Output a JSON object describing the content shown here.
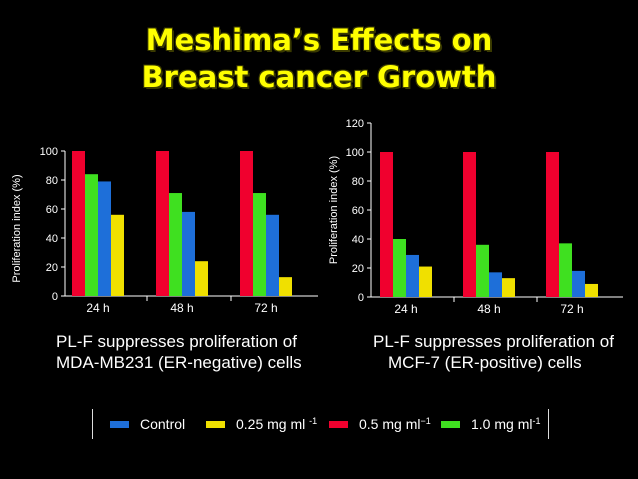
{
  "title": {
    "line1": "Meshima’s Effects on",
    "line2": "Breast cancer Growth"
  },
  "legend": [
    {
      "key": "control",
      "text": "Control",
      "sup": "",
      "color": "#1e6fd9"
    },
    {
      "key": "dose025",
      "text": "0.25 mg ml ",
      "sup": "-1",
      "color": "#f0e000"
    },
    {
      "key": "dose05",
      "text": "0.5 mg ml",
      "sup": "−1",
      "color": "#f0002e"
    },
    {
      "key": "dose10",
      "text": "1.0 mg ml",
      "sup": "-1",
      "color": "#3fe020"
    }
  ],
  "chart_data": [
    {
      "type": "bar",
      "ylabel": "Proliferation index (%)",
      "xlabel": "",
      "ylim": [
        0,
        100
      ],
      "yticks": [
        0,
        20,
        40,
        60,
        80,
        100
      ],
      "categories": [
        "24 h",
        "48 h",
        "72 h"
      ],
      "series": [
        {
          "name": "0.5 mg ml−1",
          "color": "#f0002e",
          "values": [
            100,
            100,
            100
          ]
        },
        {
          "name": "1.0 mg ml-1",
          "color": "#3fe020",
          "values": [
            84,
            71,
            71
          ]
        },
        {
          "name": "Control",
          "color": "#1e6fd9",
          "values": [
            79,
            58,
            56
          ]
        },
        {
          "name": "0.25 mg ml -1",
          "color": "#f0e000",
          "values": [
            56,
            24,
            13
          ]
        }
      ],
      "caption": [
        "PL-F suppresses proliferation of",
        "MDA-MB231 (ER-negative) cells"
      ]
    },
    {
      "type": "bar",
      "ylabel": "Proliferation index (%)",
      "xlabel": "",
      "ylim": [
        0,
        120
      ],
      "yticks": [
        0,
        20,
        40,
        60,
        80,
        100,
        120
      ],
      "categories": [
        "24 h",
        "48 h",
        "72 h"
      ],
      "series": [
        {
          "name": "0.5 mg ml−1",
          "color": "#f0002e",
          "values": [
            100,
            100,
            100
          ]
        },
        {
          "name": "1.0 mg ml-1",
          "color": "#3fe020",
          "values": [
            40,
            36,
            37
          ]
        },
        {
          "name": "Control",
          "color": "#1e6fd9",
          "values": [
            29,
            17,
            18
          ]
        },
        {
          "name": "0.25 mg ml -1",
          "color": "#f0e000",
          "values": [
            21,
            13,
            9
          ]
        }
      ],
      "caption": [
        "PL-F suppresses proliferation of",
        "MCF-7 (ER-positive) cells"
      ]
    }
  ]
}
